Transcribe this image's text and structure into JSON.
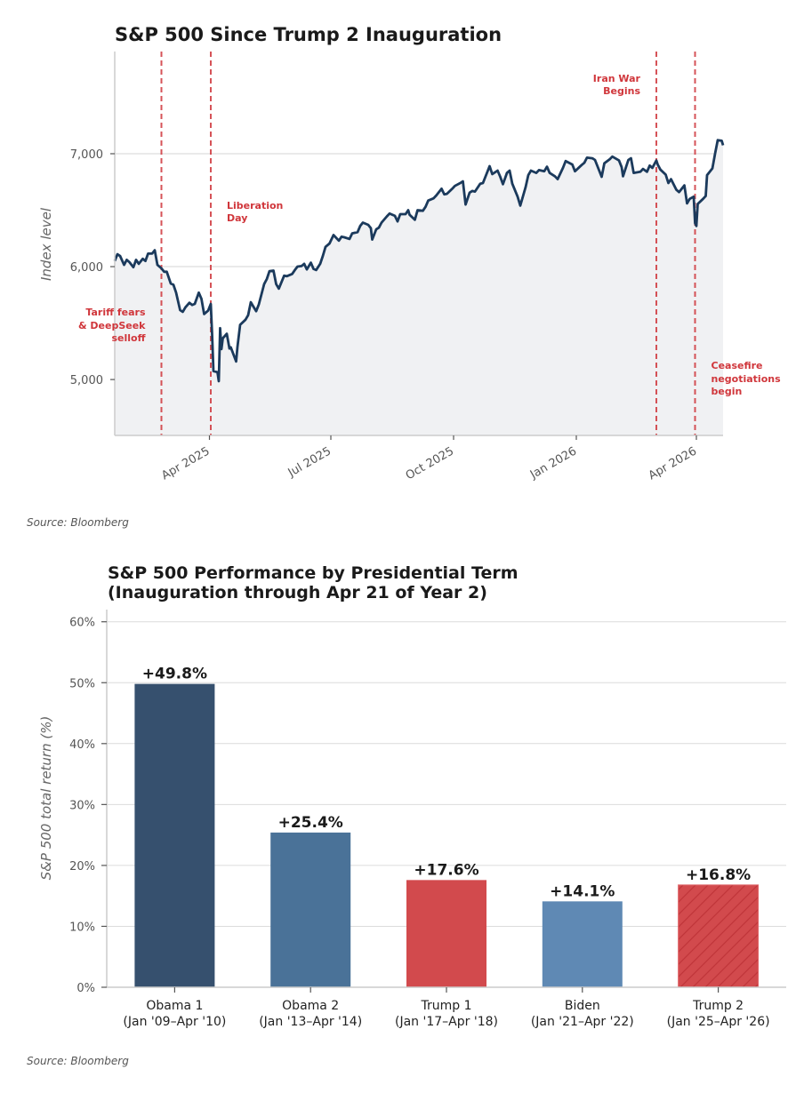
{
  "chart_data": [
    {
      "type": "line",
      "title": "S&P 500 Since Trump 2 Inauguration",
      "xlabel": "",
      "ylabel": "Index level",
      "ylim": [
        4505,
        7905
      ],
      "xlim": [
        "2025-01-20",
        "2026-04-21"
      ],
      "grid": "horizontal",
      "fill_under": true,
      "yticks": [
        {
          "value": 5000,
          "label": "5,000"
        },
        {
          "value": 6000,
          "label": "6,000"
        },
        {
          "value": 7000,
          "label": "7,000"
        }
      ],
      "xticks": [
        {
          "date": "2025-04-01",
          "label": "Apr 2025"
        },
        {
          "date": "2025-07-01",
          "label": "Jul 2025"
        },
        {
          "date": "2025-10-01",
          "label": "Oct 2025"
        },
        {
          "date": "2026-01-01",
          "label": "Jan 2026"
        },
        {
          "date": "2026-04-01",
          "label": "Apr 2026"
        }
      ],
      "series": [
        {
          "name": "S&P 500",
          "color": "#1b3a5c",
          "points": [
            [
              "2025-01-20",
              6050
            ],
            [
              "2025-01-22",
              6110
            ],
            [
              "2025-01-24",
              6095
            ],
            [
              "2025-01-27",
              6015
            ],
            [
              "2025-01-29",
              6060
            ],
            [
              "2025-01-31",
              6040
            ],
            [
              "2025-02-03",
              5995
            ],
            [
              "2025-02-05",
              6060
            ],
            [
              "2025-02-07",
              6025
            ],
            [
              "2025-02-10",
              6070
            ],
            [
              "2025-02-12",
              6050
            ],
            [
              "2025-02-14",
              6115
            ],
            [
              "2025-02-17",
              6115
            ],
            [
              "2025-02-19",
              6145
            ],
            [
              "2025-02-21",
              6015
            ],
            [
              "2025-02-24",
              5985
            ],
            [
              "2025-02-26",
              5955
            ],
            [
              "2025-02-28",
              5955
            ],
            [
              "2025-03-03",
              5850
            ],
            [
              "2025-03-05",
              5840
            ],
            [
              "2025-03-07",
              5770
            ],
            [
              "2025-03-10",
              5615
            ],
            [
              "2025-03-12",
              5600
            ],
            [
              "2025-03-14",
              5640
            ],
            [
              "2025-03-17",
              5680
            ],
            [
              "2025-03-19",
              5660
            ],
            [
              "2025-03-21",
              5670
            ],
            [
              "2025-03-24",
              5770
            ],
            [
              "2025-03-26",
              5715
            ],
            [
              "2025-03-28",
              5580
            ],
            [
              "2025-03-31",
              5610
            ],
            [
              "2025-04-02",
              5670
            ],
            [
              "2025-04-03",
              5400
            ],
            [
              "2025-04-04",
              5075
            ],
            [
              "2025-04-07",
              5065
            ],
            [
              "2025-04-08",
              4985
            ],
            [
              "2025-04-09",
              5455
            ],
            [
              "2025-04-10",
              5270
            ],
            [
              "2025-04-11",
              5365
            ],
            [
              "2025-04-14",
              5405
            ],
            [
              "2025-04-16",
              5275
            ],
            [
              "2025-04-17",
              5285
            ],
            [
              "2025-04-21",
              5160
            ],
            [
              "2025-04-22",
              5290
            ],
            [
              "2025-04-24",
              5485
            ],
            [
              "2025-04-28",
              5530
            ],
            [
              "2025-04-30",
              5570
            ],
            [
              "2025-05-02",
              5685
            ],
            [
              "2025-05-06",
              5605
            ],
            [
              "2025-05-08",
              5665
            ],
            [
              "2025-05-12",
              5845
            ],
            [
              "2025-05-14",
              5890
            ],
            [
              "2025-05-16",
              5960
            ],
            [
              "2025-05-19",
              5965
            ],
            [
              "2025-05-21",
              5845
            ],
            [
              "2025-05-23",
              5805
            ],
            [
              "2025-05-27",
              5920
            ],
            [
              "2025-05-29",
              5915
            ],
            [
              "2025-06-02",
              5935
            ],
            [
              "2025-06-04",
              5970
            ],
            [
              "2025-06-06",
              6000
            ],
            [
              "2025-06-09",
              6005
            ],
            [
              "2025-06-11",
              6025
            ],
            [
              "2025-06-13",
              5975
            ],
            [
              "2025-06-16",
              6035
            ],
            [
              "2025-06-18",
              5980
            ],
            [
              "2025-06-20",
              5970
            ],
            [
              "2025-06-23",
              6025
            ],
            [
              "2025-06-25",
              6095
            ],
            [
              "2025-06-27",
              6175
            ],
            [
              "2025-06-30",
              6205
            ],
            [
              "2025-07-03",
              6280
            ],
            [
              "2025-07-07",
              6230
            ],
            [
              "2025-07-09",
              6265
            ],
            [
              "2025-07-11",
              6260
            ],
            [
              "2025-07-15",
              6245
            ],
            [
              "2025-07-17",
              6295
            ],
            [
              "2025-07-21",
              6305
            ],
            [
              "2025-07-23",
              6360
            ],
            [
              "2025-07-25",
              6390
            ],
            [
              "2025-07-29",
              6370
            ],
            [
              "2025-07-31",
              6340
            ],
            [
              "2025-08-01",
              6240
            ],
            [
              "2025-08-04",
              6330
            ],
            [
              "2025-08-06",
              6345
            ],
            [
              "2025-08-08",
              6390
            ],
            [
              "2025-08-12",
              6445
            ],
            [
              "2025-08-14",
              6470
            ],
            [
              "2025-08-18",
              6450
            ],
            [
              "2025-08-20",
              6400
            ],
            [
              "2025-08-22",
              6465
            ],
            [
              "2025-08-26",
              6465
            ],
            [
              "2025-08-28",
              6500
            ],
            [
              "2025-08-29",
              6460
            ],
            [
              "2025-09-02",
              6415
            ],
            [
              "2025-09-04",
              6500
            ],
            [
              "2025-09-08",
              6495
            ],
            [
              "2025-09-10",
              6530
            ],
            [
              "2025-09-12",
              6585
            ],
            [
              "2025-09-16",
              6605
            ],
            [
              "2025-09-18",
              6630
            ],
            [
              "2025-09-22",
              6690
            ],
            [
              "2025-09-24",
              6640
            ],
            [
              "2025-09-26",
              6645
            ],
            [
              "2025-09-30",
              6690
            ],
            [
              "2025-10-02",
              6715
            ],
            [
              "2025-10-06",
              6740
            ],
            [
              "2025-10-08",
              6755
            ],
            [
              "2025-10-10",
              6550
            ],
            [
              "2025-10-13",
              6655
            ],
            [
              "2025-10-15",
              6670
            ],
            [
              "2025-10-17",
              6665
            ],
            [
              "2025-10-21",
              6735
            ],
            [
              "2025-10-23",
              6740
            ],
            [
              "2025-10-28",
              6890
            ],
            [
              "2025-10-30",
              6820
            ],
            [
              "2025-11-03",
              6850
            ],
            [
              "2025-11-05",
              6795
            ],
            [
              "2025-11-07",
              6730
            ],
            [
              "2025-11-10",
              6830
            ],
            [
              "2025-11-12",
              6850
            ],
            [
              "2025-11-14",
              6735
            ],
            [
              "2025-11-18",
              6620
            ],
            [
              "2025-11-20",
              6540
            ],
            [
              "2025-11-24",
              6705
            ],
            [
              "2025-11-26",
              6810
            ],
            [
              "2025-11-28",
              6850
            ],
            [
              "2025-12-02",
              6830
            ],
            [
              "2025-12-04",
              6855
            ],
            [
              "2025-12-08",
              6845
            ],
            [
              "2025-12-10",
              6885
            ],
            [
              "2025-12-12",
              6830
            ],
            [
              "2025-12-16",
              6800
            ],
            [
              "2025-12-18",
              6775
            ],
            [
              "2025-12-22",
              6875
            ],
            [
              "2025-12-24",
              6935
            ],
            [
              "2025-12-29",
              6905
            ],
            [
              "2025-12-31",
              6845
            ],
            [
              "2026-01-05",
              6900
            ],
            [
              "2026-01-07",
              6920
            ],
            [
              "2026-01-09",
              6965
            ],
            [
              "2026-01-13",
              6960
            ],
            [
              "2026-01-15",
              6945
            ],
            [
              "2026-01-20",
              6795
            ],
            [
              "2026-01-22",
              6915
            ],
            [
              "2026-01-26",
              6950
            ],
            [
              "2026-01-28",
              6975
            ],
            [
              "2026-02-02",
              6940
            ],
            [
              "2026-02-04",
              6880
            ],
            [
              "2026-02-05",
              6800
            ],
            [
              "2026-02-09",
              6945
            ],
            [
              "2026-02-11",
              6960
            ],
            [
              "2026-02-13",
              6830
            ],
            [
              "2026-02-18",
              6840
            ],
            [
              "2026-02-20",
              6865
            ],
            [
              "2026-02-23",
              6840
            ],
            [
              "2026-02-25",
              6895
            ],
            [
              "2026-02-27",
              6875
            ],
            [
              "2026-03-02",
              6940
            ],
            [
              "2026-03-03",
              6905
            ],
            [
              "2026-03-05",
              6860
            ],
            [
              "2026-03-09",
              6815
            ],
            [
              "2026-03-11",
              6740
            ],
            [
              "2026-03-13",
              6775
            ],
            [
              "2026-03-17",
              6680
            ],
            [
              "2026-03-19",
              6660
            ],
            [
              "2026-03-23",
              6720
            ],
            [
              "2026-03-25",
              6560
            ],
            [
              "2026-03-27",
              6600
            ],
            [
              "2026-03-30",
              6620
            ],
            [
              "2026-03-31",
              6385
            ],
            [
              "2026-04-01",
              6360
            ],
            [
              "2026-04-02",
              6555
            ],
            [
              "2026-04-06",
              6600
            ],
            [
              "2026-04-08",
              6625
            ],
            [
              "2026-04-09",
              6810
            ],
            [
              "2026-04-13",
              6870
            ],
            [
              "2026-04-15",
              7000
            ],
            [
              "2026-04-17",
              7120
            ],
            [
              "2026-04-20",
              7115
            ],
            [
              "2026-04-21",
              7075
            ]
          ]
        }
      ],
      "events": [
        {
          "date": "2025-02-24",
          "label": [
            "Tariff fears",
            "& DeepSeek",
            "selloff"
          ],
          "label_side": "left",
          "label_position": "middle-low"
        },
        {
          "date": "2025-04-02",
          "label": [
            "Liberation",
            "Day"
          ],
          "label_side": "right",
          "label_position": "upper"
        },
        {
          "date": "2026-03-02",
          "label": [
            "Iran War",
            "Begins"
          ],
          "label_side": "left",
          "label_position": "top"
        },
        {
          "date": "2026-03-31",
          "label": [
            "Ceasefire",
            "negotiations",
            "begin"
          ],
          "label_side": "right",
          "label_position": "bottom"
        }
      ],
      "event_color": "#d0363b",
      "source": "Source: Bloomberg"
    },
    {
      "type": "bar",
      "title": [
        "S&P 500 Performance by Presidential Term",
        "(Inauguration through Apr 21 of Year 2)"
      ],
      "xlabel": "",
      "ylabel": "S&P 500 total return (%)",
      "ylim": [
        0,
        62
      ],
      "grid": "horizontal",
      "yticks": [
        {
          "value": 0,
          "label": "0%"
        },
        {
          "value": 10,
          "label": "10%"
        },
        {
          "value": 20,
          "label": "20%"
        },
        {
          "value": 30,
          "label": "30%"
        },
        {
          "value": 40,
          "label": "40%"
        },
        {
          "value": 50,
          "label": "50%"
        },
        {
          "value": 60,
          "label": "60%"
        }
      ],
      "categories": [
        {
          "name": "Obama 1",
          "period": "(Jan '09–Apr '10)"
        },
        {
          "name": "Obama 2",
          "period": "(Jan '13–Apr '14)"
        },
        {
          "name": "Trump 1",
          "period": "(Jan '17–Apr '18)"
        },
        {
          "name": "Biden",
          "period": "(Jan '21–Apr '22)"
        },
        {
          "name": "Trump 2",
          "period": "(Jan '25–Apr '26)"
        }
      ],
      "values": [
        49.8,
        25.4,
        17.6,
        14.1,
        16.8
      ],
      "value_labels": [
        "+49.8%",
        "+25.4%",
        "+17.6%",
        "+14.1%",
        "+16.8%"
      ],
      "colors": [
        "#36506e",
        "#4a7298",
        "#d24a4d",
        "#5f89b4",
        "#d24a4d"
      ],
      "hatched": [
        false,
        false,
        false,
        false,
        true
      ],
      "source": "Source: Bloomberg"
    }
  ]
}
